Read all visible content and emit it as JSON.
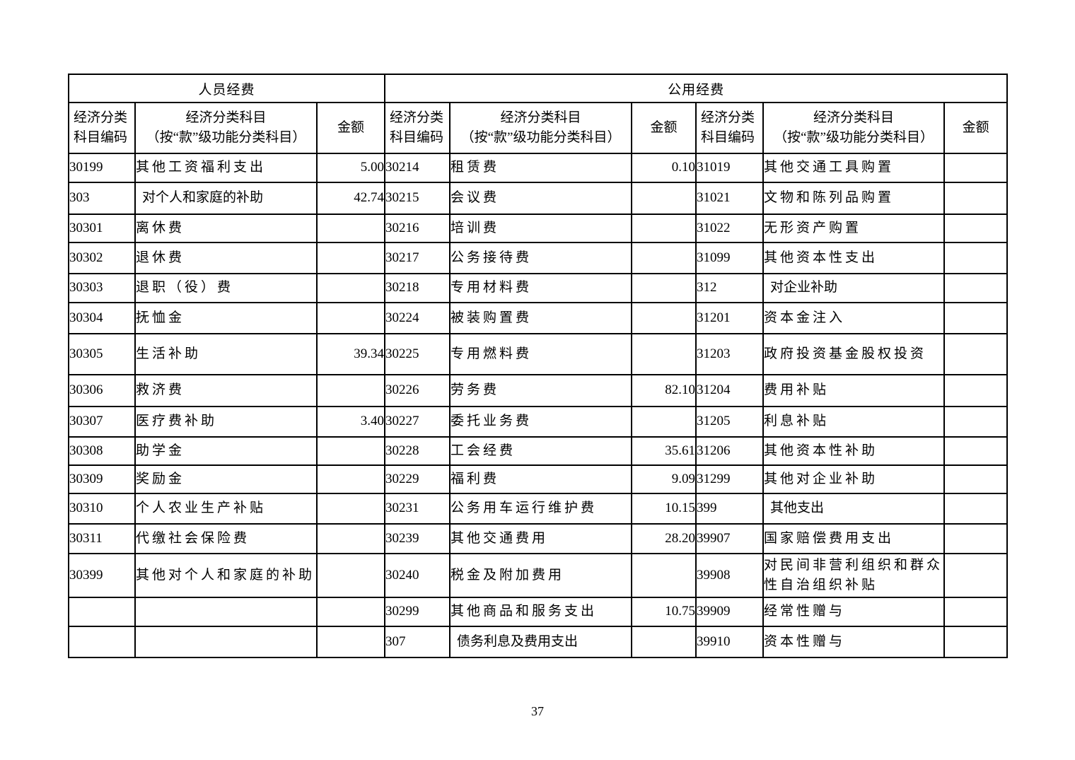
{
  "page": {
    "number": "37"
  },
  "table": {
    "group_headers": {
      "personnel": "人员经费",
      "public": "公用经费"
    },
    "column_headers": {
      "code_l1": "经济分类",
      "code_l2": "科目编码",
      "subject_l1": "经济分类科目",
      "subject_l2": "（按“款”级功能分类科目）",
      "amount": "金额"
    },
    "rows": [
      {
        "g1": {
          "code": "30199",
          "subject": "其他工资福利支出",
          "amount": "5.00",
          "bold": false
        },
        "g2": {
          "code": "30214",
          "subject": "租赁费",
          "amount": "0.10",
          "bold": false
        },
        "g3": {
          "code": "31019",
          "subject": "其他交通工具购置",
          "amount": "",
          "bold": false
        }
      },
      {
        "g1": {
          "code": "303",
          "subject": "对个人和家庭的补助",
          "amount": "42.74",
          "bold": true
        },
        "g2": {
          "code": "30215",
          "subject": "会议费",
          "amount": "",
          "bold": false
        },
        "g3": {
          "code": "31021",
          "subject": "文物和陈列品购置",
          "amount": "",
          "bold": false
        }
      },
      {
        "g1": {
          "code": "30301",
          "subject": "离休费",
          "amount": "",
          "bold": false
        },
        "g2": {
          "code": "30216",
          "subject": "培训费",
          "amount": "",
          "bold": false
        },
        "g3": {
          "code": "31022",
          "subject": "无形资产购置",
          "amount": "",
          "bold": false
        }
      },
      {
        "g1": {
          "code": "30302",
          "subject": "退休费",
          "amount": "",
          "bold": false
        },
        "g2": {
          "code": "30217",
          "subject": "公务接待费",
          "amount": "",
          "bold": false
        },
        "g3": {
          "code": "31099",
          "subject": "其他资本性支出",
          "amount": "",
          "bold": false
        }
      },
      {
        "g1": {
          "code": "30303",
          "subject": "退职（役）费",
          "amount": "",
          "bold": false
        },
        "g2": {
          "code": "30218",
          "subject": "专用材料费",
          "amount": "",
          "bold": false
        },
        "g3": {
          "code": "312",
          "subject": "对企业补助",
          "amount": "",
          "bold": true
        }
      },
      {
        "g1": {
          "code": "30304",
          "subject": "抚恤金",
          "amount": "",
          "bold": false
        },
        "g2": {
          "code": "30224",
          "subject": "被装购置费",
          "amount": "",
          "bold": false
        },
        "g3": {
          "code": "31201",
          "subject": "资本金注入",
          "amount": "",
          "bold": false
        }
      },
      {
        "g1": {
          "code": "30305",
          "subject": "生活补助",
          "amount": "39.34",
          "bold": false
        },
        "g2": {
          "code": "30225",
          "subject": "专用燃料费",
          "amount": "",
          "bold": false
        },
        "g3": {
          "code": "31203",
          "subject": "政府投资基金股权投资",
          "amount": "",
          "bold": false
        }
      },
      {
        "g1": {
          "code": "30306",
          "subject": "救济费",
          "amount": "",
          "bold": false
        },
        "g2": {
          "code": "30226",
          "subject": "劳务费",
          "amount": "82.10",
          "bold": false
        },
        "g3": {
          "code": "31204",
          "subject": "费用补贴",
          "amount": "",
          "bold": false
        }
      },
      {
        "g1": {
          "code": "30307",
          "subject": "医疗费补助",
          "amount": "3.40",
          "bold": false
        },
        "g2": {
          "code": "30227",
          "subject": "委托业务费",
          "amount": "",
          "bold": false
        },
        "g3": {
          "code": "31205",
          "subject": "利息补贴",
          "amount": "",
          "bold": false
        }
      },
      {
        "g1": {
          "code": "30308",
          "subject": "助学金",
          "amount": "",
          "bold": false
        },
        "g2": {
          "code": "30228",
          "subject": "工会经费",
          "amount": "35.61",
          "bold": false
        },
        "g3": {
          "code": "31206",
          "subject": "其他资本性补助",
          "amount": "",
          "bold": false
        }
      },
      {
        "g1": {
          "code": "30309",
          "subject": "奖励金",
          "amount": "",
          "bold": false
        },
        "g2": {
          "code": "30229",
          "subject": "福利费",
          "amount": "9.09",
          "bold": false
        },
        "g3": {
          "code": "31299",
          "subject": "其他对企业补助",
          "amount": "",
          "bold": false
        }
      },
      {
        "g1": {
          "code": "30310",
          "subject": "个人农业生产补贴",
          "amount": "",
          "bold": false
        },
        "g2": {
          "code": "30231",
          "subject": "公务用车运行维护费",
          "amount": "10.15",
          "bold": false
        },
        "g3": {
          "code": "399",
          "subject": "其他支出",
          "amount": "",
          "bold": true
        }
      },
      {
        "g1": {
          "code": "30311",
          "subject": "代缴社会保险费",
          "amount": "",
          "bold": false
        },
        "g2": {
          "code": "30239",
          "subject": "其他交通费用",
          "amount": "28.20",
          "bold": false
        },
        "g3": {
          "code": "39907",
          "subject": "国家赔偿费用支出",
          "amount": "",
          "bold": false
        }
      },
      {
        "g1": {
          "code": "30399",
          "subject": "其他对个人和家庭的补助",
          "amount": "",
          "bold": false
        },
        "g2": {
          "code": "30240",
          "subject": "税金及附加费用",
          "amount": "",
          "bold": false
        },
        "g3": {
          "code": "39908",
          "subject": "对民间非营利组织和群众性自治组织补贴",
          "amount": "",
          "bold": false
        }
      },
      {
        "g1": {
          "code": "",
          "subject": "",
          "amount": "",
          "bold": false
        },
        "g2": {
          "code": "30299",
          "subject": "其他商品和服务支出",
          "amount": "10.75",
          "bold": false
        },
        "g3": {
          "code": "39909",
          "subject": "经常性赠与",
          "amount": "",
          "bold": false
        }
      },
      {
        "g1": {
          "code": "",
          "subject": "",
          "amount": "",
          "bold": false
        },
        "g2": {
          "code": "307",
          "subject": "债务利息及费用支出",
          "amount": "",
          "bold": true
        },
        "g3": {
          "code": "39910",
          "subject": "资本性赠与",
          "amount": "",
          "bold": false
        }
      }
    ]
  }
}
